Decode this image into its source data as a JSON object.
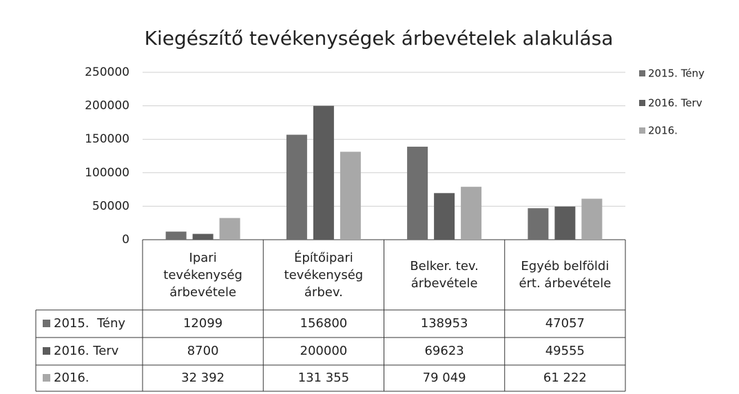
{
  "chart_data": {
    "type": "bar",
    "title": "Kiegészítő tevékenységek árbevételek alakulása",
    "categories": [
      "Ipari tevékenység árbevétele",
      "Építőipari tevékenység árbev.",
      "Belker. tev. árbevétele",
      "Egyéb belföldi ért. árbevétele"
    ],
    "series": [
      {
        "name": "2015.  Tény",
        "color": "#6f6f6f",
        "values": [
          12099,
          156800,
          138953,
          47057
        ]
      },
      {
        "name": "2016. Terv",
        "color": "#5c5c5c",
        "values": [
          8700,
          200000,
          69623,
          49555
        ]
      },
      {
        "name": "2016.",
        "color": "#a8a8a8",
        "values": [
          32392,
          131355,
          79049,
          61222
        ],
        "value_labels": [
          "32 392",
          "131 355",
          "79 049",
          "61 222"
        ]
      }
    ],
    "ylim": [
      0,
      250000
    ],
    "yticks": [
      0,
      50000,
      100000,
      150000,
      200000,
      250000
    ],
    "grid": true,
    "legend": "right"
  }
}
